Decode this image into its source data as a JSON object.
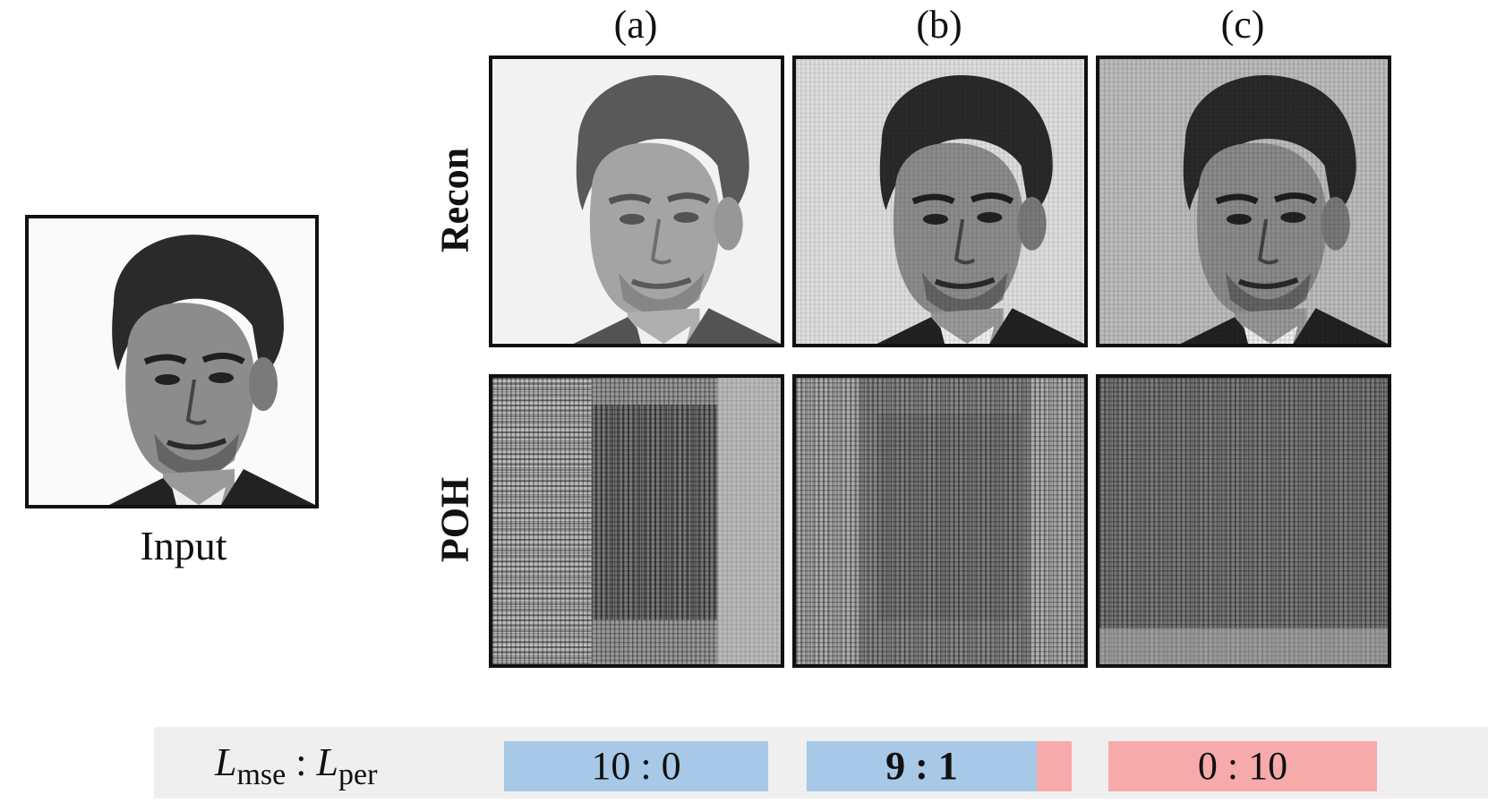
{
  "columns": [
    "(a)",
    "(b)",
    "(c)"
  ],
  "rows": [
    "Recon",
    "POH"
  ],
  "input_caption": "Input",
  "loss_label": {
    "l1": "L",
    "l1_sub": "mse",
    "separator": " : ",
    "l2": "L",
    "l2_sub": "per"
  },
  "ratios": [
    "10 : 0",
    "9 : 1",
    "0 : 10"
  ],
  "colors": {
    "mse_bar": "#a7c8e6",
    "per_bar": "#f6aaaa",
    "ratio_strip": "#efefef"
  }
}
